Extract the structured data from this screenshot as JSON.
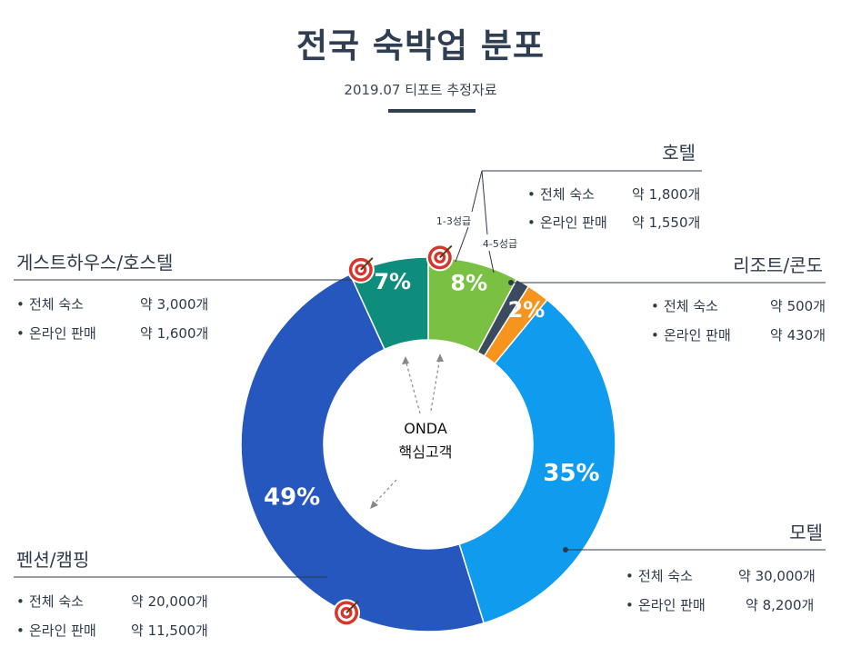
{
  "title": "전국 숙박업 분포",
  "subtitle": "2019.07 티포트 추정자료",
  "center_label": [
    "ONDA",
    "핵심고객"
  ],
  "hotel_grade_labels": {
    "grade_1_3": "1-3성급",
    "grade_4_5": "4-5성급"
  },
  "groups": {
    "hotel": {
      "title": "호텔",
      "rows": [
        {
          "label": "전체 숙소",
          "value": "약 1,800개"
        },
        {
          "label": "온라인 판매",
          "value": "약 1,550개"
        }
      ]
    },
    "resort": {
      "title": "리조트/콘도",
      "rows": [
        {
          "label": "전체 숙소",
          "value": "약 500개"
        },
        {
          "label": "온라인 판매",
          "value": "약 430개"
        }
      ]
    },
    "guesthouse": {
      "title": "게스트하우스/호스텔",
      "rows": [
        {
          "label": "전체 숙소",
          "value": "약 3,000개"
        },
        {
          "label": "온라인 판매",
          "value": "약 1,600개"
        }
      ]
    },
    "pension": {
      "title": "펜션/캠핑",
      "rows": [
        {
          "label": "전체 숙소",
          "value": "약 20,000개"
        },
        {
          "label": "온라인 판매",
          "value": "약 11,500개"
        }
      ]
    },
    "motel": {
      "title": "모텔",
      "rows": [
        {
          "label": "전체 숙소",
          "value": "약 30,000개"
        },
        {
          "label": "온라인 판매",
          "value": "약 8,200개"
        }
      ]
    }
  },
  "chart_data": {
    "type": "pie",
    "style": "donut",
    "slices": [
      {
        "label": "호텔 1-3성급",
        "value": 8,
        "text": "8%",
        "color": "#7ac143",
        "target_icon": true
      },
      {
        "label": "호텔 4-5성급",
        "value": 1.2,
        "text": "",
        "color": "#3b4a5c"
      },
      {
        "label": "리조트/콘도",
        "value": 2,
        "text": "2%",
        "color": "#f7941d"
      },
      {
        "label": "모텔",
        "value": 35,
        "text": "35%",
        "color": "#0f9cee"
      },
      {
        "label": "펜션/캠핑",
        "value": 49,
        "text": "49%",
        "color": "#2557be",
        "target_icon": true
      },
      {
        "label": "게스트하우스/호스텔",
        "value": 7,
        "text": "7%",
        "color": "#0e8c7c",
        "target_icon": true
      }
    ]
  }
}
